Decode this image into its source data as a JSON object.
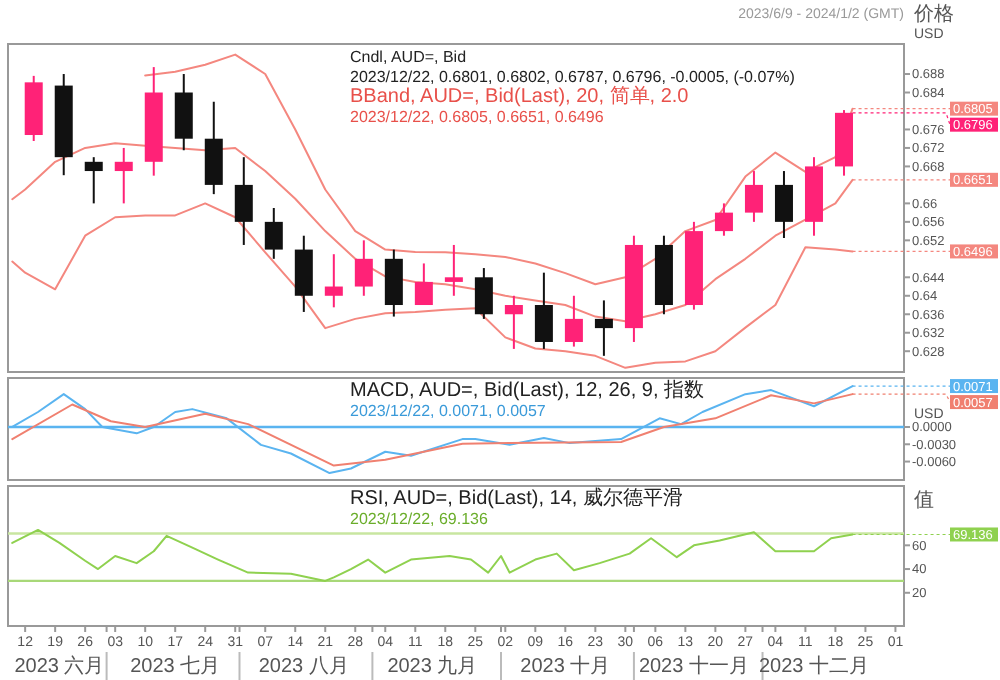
{
  "chart_data": [
    {
      "type": "candlestick",
      "title": "Cndl, AUD=, Bid",
      "subtitle": "2023/12/22, 0.6801, 0.6802, 0.6787, 0.6796, -0.0005, (-0.07%)",
      "ylabel": "价格 USD",
      "annotations": [
        "BBand, AUD=, Bid(Last), 20, 简单, 2.0",
        "2023/12/22, 0.6805, 0.6651, 0.6496",
        "2023/6/9 - 2024/1/2 (GMT)",
        {
          "text": "0.6805",
          "x": "2023-12-22",
          "y": 0.6805
        },
        {
          "text": "0.6796",
          "x": "2023-12-22",
          "y": 0.6796
        },
        {
          "text": "0.6651",
          "x": "2023-12-22",
          "y": 0.6651
        },
        {
          "text": "0.6496",
          "x": "2023-12-22",
          "y": 0.6496
        }
      ],
      "x": [
        "2023-06-14",
        "2023-06-21",
        "2023-06-28",
        "2023-07-05",
        "2023-07-12",
        "2023-07-19",
        "2023-07-26",
        "2023-08-02",
        "2023-08-09",
        "2023-08-16",
        "2023-08-23",
        "2023-08-30",
        "2023-09-06",
        "2023-09-13",
        "2023-09-20",
        "2023-09-27",
        "2023-10-04",
        "2023-10-11",
        "2023-10-18",
        "2023-10-25",
        "2023-11-01",
        "2023-11-08",
        "2023-11-15",
        "2023-11-22",
        "2023-11-29",
        "2023-12-06",
        "2023-12-13",
        "2023-12-20"
      ],
      "ohlc": [
        [
          0.6748,
          0.6876,
          0.6735,
          0.6862
        ],
        [
          0.6855,
          0.688,
          0.6661,
          0.67
        ],
        [
          0.669,
          0.67,
          0.66,
          0.667
        ],
        [
          0.667,
          0.672,
          0.66,
          0.669
        ],
        [
          0.669,
          0.6895,
          0.666,
          0.684
        ],
        [
          0.684,
          0.688,
          0.6715,
          0.674
        ],
        [
          0.674,
          0.682,
          0.662,
          0.664
        ],
        [
          0.664,
          0.67,
          0.651,
          0.656
        ],
        [
          0.656,
          0.659,
          0.648,
          0.65
        ],
        [
          0.65,
          0.653,
          0.6365,
          0.64
        ],
        [
          0.64,
          0.649,
          0.6375,
          0.642
        ],
        [
          0.642,
          0.652,
          0.64,
          0.648
        ],
        [
          0.648,
          0.65,
          0.6355,
          0.638
        ],
        [
          0.638,
          0.647,
          0.638,
          0.643
        ],
        [
          0.643,
          0.651,
          0.64,
          0.644
        ],
        [
          0.644,
          0.646,
          0.635,
          0.636
        ],
        [
          0.636,
          0.64,
          0.6285,
          0.638
        ],
        [
          0.638,
          0.645,
          0.6285,
          0.63
        ],
        [
          0.63,
          0.64,
          0.629,
          0.635
        ],
        [
          0.635,
          0.639,
          0.627,
          0.633
        ],
        [
          0.633,
          0.653,
          0.63,
          0.651
        ],
        [
          0.651,
          0.653,
          0.636,
          0.638
        ],
        [
          0.638,
          0.656,
          0.637,
          0.654
        ],
        [
          0.654,
          0.66,
          0.653,
          0.658
        ],
        [
          0.658,
          0.667,
          0.656,
          0.664
        ],
        [
          0.664,
          0.667,
          0.6525,
          0.656
        ],
        [
          0.656,
          0.67,
          0.653,
          0.668
        ],
        [
          0.668,
          0.6802,
          0.666,
          0.6796
        ]
      ],
      "colors": [
        "#ff2277",
        "#111111",
        "#111111",
        "#ff2277",
        "#ff2277",
        "#111111",
        "#111111",
        "#111111",
        "#111111",
        "#111111",
        "#ff2277",
        "#ff2277",
        "#111111",
        "#ff2277",
        "#ff2277",
        "#111111",
        "#ff2277",
        "#111111",
        "#ff2277",
        "#111111",
        "#ff2277",
        "#111111",
        "#ff2277",
        "#ff2277",
        "#ff2277",
        "#111111",
        "#ff2277",
        "#ff2277"
      ],
      "series": [
        {
          "type": "line",
          "color": "#f4877f",
          "x": [
            "2023-07-10",
            "2023-07-17",
            "2023-07-24",
            "2023-07-31",
            "2023-08-07",
            "2023-08-14",
            "2023-08-21",
            "2023-08-28",
            "2023-09-04",
            "2023-09-11",
            "2023-09-18",
            "2023-09-25",
            "2023-10-02",
            "2023-10-09",
            "2023-10-16",
            "2023-10-23",
            "2023-10-30",
            "2023-11-06",
            "2023-11-13",
            "2023-11-20",
            "2023-11-27",
            "2023-12-04",
            "2023-12-11",
            "2023-12-18",
            "2023-12-22"
          ],
          "values": [
            0.6877,
            0.6885,
            0.69,
            0.6922,
            0.688,
            0.676,
            0.663,
            0.654,
            0.65,
            0.6495,
            0.6494,
            0.649,
            0.6484,
            0.647,
            0.6449,
            0.6425,
            0.644,
            0.648,
            0.654,
            0.6564,
            0.6658,
            0.671,
            0.6668,
            0.67,
            0.6805
          ]
        },
        {
          "type": "line",
          "color": "#f4877f",
          "x": [
            "2023-06-09",
            "2023-06-12",
            "2023-06-19",
            "2023-06-26",
            "2023-07-03",
            "2023-07-10",
            "2023-07-17",
            "2023-07-24",
            "2023-07-31",
            "2023-08-07",
            "2023-08-14",
            "2023-08-21",
            "2023-08-28",
            "2023-09-04",
            "2023-09-11",
            "2023-09-18",
            "2023-09-25",
            "2023-10-02",
            "2023-10-09",
            "2023-10-16",
            "2023-10-23",
            "2023-10-30",
            "2023-11-06",
            "2023-11-13",
            "2023-11-20",
            "2023-11-27",
            "2023-12-04",
            "2023-12-11",
            "2023-12-18",
            "2023-12-22"
          ],
          "values": [
            0.6609,
            0.663,
            0.669,
            0.672,
            0.673,
            0.6725,
            0.672,
            0.6715,
            0.672,
            0.667,
            0.661,
            0.654,
            0.648,
            0.6442,
            0.643,
            0.6425,
            0.6414,
            0.64,
            0.639,
            0.638,
            0.6355,
            0.6345,
            0.636,
            0.638,
            0.6436,
            0.648,
            0.653,
            0.6565,
            0.66,
            0.6651
          ]
        },
        {
          "type": "line",
          "color": "#f4877f",
          "x": [
            "2023-06-09",
            "2023-06-12",
            "2023-06-19",
            "2023-06-26",
            "2023-07-03",
            "2023-07-10",
            "2023-07-17",
            "2023-07-24",
            "2023-07-31",
            "2023-08-07",
            "2023-08-14",
            "2023-08-21",
            "2023-08-28",
            "2023-09-04",
            "2023-09-11",
            "2023-09-18",
            "2023-09-25",
            "2023-10-02",
            "2023-10-09",
            "2023-10-16",
            "2023-10-23",
            "2023-10-30",
            "2023-11-06",
            "2023-11-13",
            "2023-11-20",
            "2023-11-27",
            "2023-12-04",
            "2023-12-11",
            "2023-12-18",
            "2023-12-22"
          ],
          "values": [
            0.6474,
            0.645,
            0.6414,
            0.653,
            0.657,
            0.6574,
            0.6574,
            0.66,
            0.657,
            0.6494,
            0.642,
            0.633,
            0.635,
            0.6362,
            0.6365,
            0.637,
            0.6373,
            0.631,
            0.6286,
            0.628,
            0.627,
            0.6244,
            0.6255,
            0.6258,
            0.628,
            0.6331,
            0.638,
            0.6505,
            0.65,
            0.6496
          ]
        }
      ],
      "xlim": [
        "2023-06-08",
        "2024-01-03"
      ],
      "ylim": [
        0.6235,
        0.6945
      ],
      "yticks": [
        0.628,
        0.632,
        0.636,
        0.64,
        0.644,
        0.652,
        0.656,
        0.66,
        0.668,
        0.672,
        0.676,
        0.684,
        0.688
      ],
      "tick_labels": "y"
    },
    {
      "type": "line",
      "title": "MACD, AUD=, Bid(Last), 12, 26, 9, 指数",
      "subtitle": "2023/12/22, 0.0071, 0.0057",
      "ylabel": "USD",
      "annotations": [
        {
          "text": "0.0071",
          "x": "2023-12-22",
          "y": 0.0071
        },
        {
          "text": "0.0057",
          "x": "2023-12-22",
          "y": 0.0057
        }
      ],
      "series": [
        {
          "color": "#5ab4f0",
          "x": [
            "2023-06-09",
            "2023-06-15",
            "2023-06-21",
            "2023-06-26",
            "2023-06-30",
            "2023-07-08",
            "2023-07-12",
            "2023-07-17",
            "2023-07-21",
            "2023-07-29",
            "2023-08-06",
            "2023-08-13",
            "2023-08-22",
            "2023-08-27",
            "2023-09-04",
            "2023-09-10",
            "2023-09-22",
            "2023-09-25",
            "2023-10-03",
            "2023-10-11",
            "2023-10-17",
            "2023-10-29",
            "2023-11-07",
            "2023-11-12",
            "2023-11-17",
            "2023-11-27",
            "2023-12-03",
            "2023-12-13",
            "2023-12-22"
          ],
          "values": [
            0,
            0.0026,
            0.0057,
            0.0031,
            0,
            -0.0011,
            0,
            0.0026,
            0.0031,
            0.0015,
            -0.0031,
            -0.0046,
            -0.008,
            -0.0072,
            -0.0043,
            -0.005,
            -0.0021,
            -0.0021,
            -0.0031,
            -0.0019,
            -0.0028,
            -0.0021,
            0.0015,
            0.0005,
            0.0026,
            0.0057,
            0.0064,
            0.0036,
            0.0071
          ]
        },
        {
          "color": "#f08070",
          "x": [
            "2023-06-09",
            "2023-06-23",
            "2023-07-02",
            "2023-07-10",
            "2023-07-24",
            "2023-08-03",
            "2023-08-23",
            "2023-09-04",
            "2023-09-22",
            "2023-10-03",
            "2023-10-29",
            "2023-11-08",
            "2023-11-20",
            "2023-12-03",
            "2023-12-13",
            "2023-12-22"
          ],
          "values": [
            -0.0021,
            0.0039,
            0.001,
            0,
            0.0023,
            0.0005,
            -0.0067,
            -0.0057,
            -0.0029,
            -0.0028,
            -0.0026,
            0,
            0.0015,
            0.0055,
            0.0041,
            0.0057
          ]
        }
      ],
      "ref_lines": [
        {
          "axis": "y",
          "value": 0,
          "color": "#5ab4f0"
        }
      ],
      "xlim": [
        "2023-06-08",
        "2024-01-03"
      ],
      "ylim": [
        -0.0092,
        0.0085
      ],
      "yticks": [
        {
          "value": 0,
          "label": "0.0000"
        },
        {
          "value": -0.003,
          "label": "-0.0030"
        },
        {
          "value": -0.006,
          "label": "-0.0060"
        }
      ],
      "tick_labels": "y"
    },
    {
      "type": "line",
      "title": "RSI, AUD=, Bid(Last), 14, 威尔德平滑",
      "subtitle": "2023/12/22, 69.136",
      "ylabel": "值",
      "annotations": [
        {
          "text": "69.136",
          "x": "2023-12-22",
          "y": 69.136
        }
      ],
      "x2lim": [
        "2023-06-08",
        "2024-01-03"
      ],
      "x2ticks": [
        {
          "value": "2023-06-20",
          "label": "2023 六月"
        },
        {
          "value": "2023-07-01",
          "label": null
        },
        {
          "value": "2023-07-17",
          "label": "2023 七月"
        },
        {
          "value": "2023-08-01",
          "label": null
        },
        {
          "value": "2023-08-16",
          "label": "2023 八月"
        },
        {
          "value": "2023-09-01",
          "label": null
        },
        {
          "value": "2023-09-15",
          "label": "2023 九月"
        },
        {
          "value": "2023-10-01",
          "label": null
        },
        {
          "value": "2023-10-16",
          "label": "2023 十月"
        },
        {
          "value": "2023-11-01",
          "label": null
        },
        {
          "value": "2023-11-15",
          "label": "2023 十一月"
        },
        {
          "value": "2023-12-01",
          "label": null
        },
        {
          "value": "2023-12-13",
          "label": "2023 十二月"
        }
      ],
      "series": [
        {
          "color": "#8fd14f",
          "x": [
            "2023-06-09",
            "2023-06-15",
            "2023-06-20",
            "2023-06-26",
            "2023-06-29",
            "2023-07-03",
            "2023-07-08",
            "2023-07-12",
            "2023-07-15",
            "2023-07-21",
            "2023-07-27",
            "2023-08-03",
            "2023-08-13",
            "2023-08-21",
            "2023-08-23",
            "2023-08-27",
            "2023-08-31",
            "2023-09-04",
            "2023-09-10",
            "2023-09-19",
            "2023-09-24",
            "2023-09-28",
            "2023-10-01",
            "2023-10-03",
            "2023-10-09",
            "2023-10-14",
            "2023-10-18",
            "2023-10-24",
            "2023-10-31",
            "2023-11-05",
            "2023-11-11",
            "2023-11-15",
            "2023-11-21",
            "2023-11-29",
            "2023-12-04",
            "2023-12-13",
            "2023-12-17",
            "2023-12-22"
          ],
          "values": [
            62,
            73,
            62,
            47,
            40,
            51,
            45,
            55,
            68,
            58,
            48,
            37,
            36,
            30,
            33,
            40,
            48,
            37,
            48,
            51,
            48,
            37,
            51,
            37,
            48,
            53,
            39,
            45,
            53,
            66,
            50,
            60,
            64,
            71,
            55,
            55,
            66,
            69.136
          ]
        }
      ],
      "ref_lines": [
        {
          "axis": "y",
          "value": 70,
          "color": "#c8e6a0"
        },
        {
          "axis": "y",
          "value": 30,
          "color": "#a8d878"
        }
      ],
      "xlim": [
        "2023-06-08",
        "2024-01-03"
      ],
      "ylim": [
        -8,
        110
      ],
      "yticks": [
        20,
        40,
        60
      ],
      "xticks": [
        {
          "value": "2023-06-12",
          "label": "12"
        },
        {
          "value": "2023-06-19",
          "label": "19"
        },
        {
          "value": "2023-06-26",
          "label": "26"
        },
        {
          "value": "2023-07-03",
          "label": "03"
        },
        {
          "value": "2023-07-10",
          "label": "10"
        },
        {
          "value": "2023-07-17",
          "label": "17"
        },
        {
          "value": "2023-07-24",
          "label": "24"
        },
        {
          "value": "2023-07-31",
          "label": "31"
        },
        {
          "value": "2023-08-07",
          "label": "07"
        },
        {
          "value": "2023-08-14",
          "label": "14"
        },
        {
          "value": "2023-08-21",
          "label": "21"
        },
        {
          "value": "2023-08-28",
          "label": "28"
        },
        {
          "value": "2023-09-04",
          "label": "04"
        },
        {
          "value": "2023-09-11",
          "label": "11"
        },
        {
          "value": "2023-09-18",
          "label": "18"
        },
        {
          "value": "2023-09-25",
          "label": "25"
        },
        {
          "value": "2023-10-02",
          "label": "02"
        },
        {
          "value": "2023-10-09",
          "label": "09"
        },
        {
          "value": "2023-10-16",
          "label": "16"
        },
        {
          "value": "2023-10-23",
          "label": "23"
        },
        {
          "value": "2023-10-30",
          "label": "30"
        },
        {
          "value": "2023-11-06",
          "label": "06"
        },
        {
          "value": "2023-11-13",
          "label": "13"
        },
        {
          "value": "2023-11-20",
          "label": "20"
        },
        {
          "value": "2023-11-27",
          "label": "27"
        },
        {
          "value": "2023-12-04",
          "label": "04"
        },
        {
          "value": "2023-12-11",
          "label": "11"
        },
        {
          "value": "2023-12-18",
          "label": "18"
        },
        {
          "value": "2023-12-25",
          "label": "25"
        },
        {
          "value": "2024-01-01",
          "label": "01"
        }
      ]
    }
  ]
}
